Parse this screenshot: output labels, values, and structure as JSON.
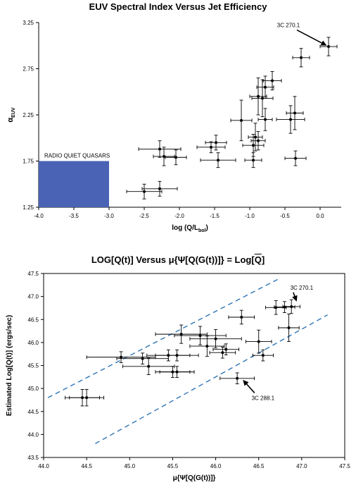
{
  "chart_data": [
    {
      "type": "scatter",
      "title": "EUV Spectral Index Versus Jet Efficiency",
      "xlabel": "log (Q/L",
      "xlabel_sub": "bol",
      "xlabel_end": ")",
      "ylabel": "α",
      "ylabel_sub": "EUV",
      "xlim": [
        -4.0,
        0.3
      ],
      "ylim": [
        1.25,
        3.25
      ],
      "xticks": [
        "-4.0",
        "-3.5",
        "-3.0",
        "-2.5",
        "-2.0",
        "-1.5",
        "-1.0",
        "-0.5",
        "0.0"
      ],
      "xtick_values": [
        -4.0,
        -3.5,
        -3.0,
        -2.5,
        -2.0,
        -1.5,
        -1.0,
        -0.5,
        0.0
      ],
      "yticks": [
        "1.25",
        "1.75",
        "2.25",
        "2.75",
        "3.25"
      ],
      "ytick_values": [
        1.25,
        1.75,
        2.25,
        2.75,
        3.25
      ],
      "region": {
        "label": "RADIO QUIET QUASARS",
        "x": [
          -4.0,
          -3.0
        ],
        "y": [
          1.25,
          1.75
        ],
        "color": "#4a63b5"
      },
      "annotations": [
        {
          "text": "3C 270.1",
          "x": 0.12,
          "y": 2.99,
          "text_x": -0.45,
          "text_y": 3.2
        }
      ],
      "points": [
        {
          "x": 0.12,
          "y": 2.99,
          "xerr": 0.12,
          "yerr": 0.1
        },
        {
          "x": -0.27,
          "y": 2.87,
          "xerr": 0.12,
          "yerr": 0.1
        },
        {
          "x": -0.68,
          "y": 2.62,
          "xerr": 0.13,
          "yerr": 0.1
        },
        {
          "x": -0.78,
          "y": 2.55,
          "xerr": 0.12,
          "yerr": 0.12
        },
        {
          "x": -0.82,
          "y": 2.43,
          "xerr": 0.15,
          "yerr": 0.2
        },
        {
          "x": -0.88,
          "y": 2.45,
          "xerr": 0.12,
          "yerr": 0.2
        },
        {
          "x": -0.78,
          "y": 2.2,
          "xerr": 0.1,
          "yerr": 0.12
        },
        {
          "x": -0.36,
          "y": 2.27,
          "xerr": 0.12,
          "yerr": 0.18
        },
        {
          "x": -0.42,
          "y": 2.2,
          "xerr": 0.2,
          "yerr": 0.15
        },
        {
          "x": -1.12,
          "y": 2.19,
          "xerr": 0.15,
          "yerr": 0.22
        },
        {
          "x": -0.92,
          "y": 2.01,
          "xerr": 0.1,
          "yerr": 0.15
        },
        {
          "x": -0.88,
          "y": 1.97,
          "xerr": 0.1,
          "yerr": 0.1
        },
        {
          "x": -0.95,
          "y": 1.92,
          "xerr": 0.15,
          "yerr": 0.12
        },
        {
          "x": -1.48,
          "y": 1.95,
          "xerr": 0.15,
          "yerr": 0.08
        },
        {
          "x": -1.55,
          "y": 1.9,
          "xerr": 0.2,
          "yerr": 0.06
        },
        {
          "x": -2.28,
          "y": 1.88,
          "xerr": 0.3,
          "yerr": 0.09
        },
        {
          "x": -2.22,
          "y": 1.8,
          "xerr": 0.15,
          "yerr": 0.1
        },
        {
          "x": -2.05,
          "y": 1.79,
          "xerr": 0.15,
          "yerr": 0.08
        },
        {
          "x": -1.45,
          "y": 1.76,
          "xerr": 0.25,
          "yerr": 0.08
        },
        {
          "x": -0.95,
          "y": 1.76,
          "xerr": 0.12,
          "yerr": 0.08
        },
        {
          "x": -0.35,
          "y": 1.78,
          "xerr": 0.15,
          "yerr": 0.08
        },
        {
          "x": -2.28,
          "y": 1.45,
          "xerr": 0.25,
          "yerr": 0.08
        },
        {
          "x": -2.5,
          "y": 1.42,
          "xerr": 0.25,
          "yerr": 0.08
        }
      ]
    },
    {
      "type": "scatter",
      "title": "LOG[Q(t)] Versus μ{Ψ[Q(G(t))]} = Log[",
      "title_overline": "Q",
      "title_end": "]",
      "xlabel": "μ{Ψ[Q(G(t))]}",
      "ylabel": "Estimated Log[Q(t)] (ergs/sec)",
      "xlim": [
        44.0,
        47.5
      ],
      "ylim": [
        43.5,
        47.5
      ],
      "xticks": [
        "44.0",
        "44.5",
        "45.0",
        "45.5",
        "46.0",
        "46.5",
        "47.0",
        "47.5"
      ],
      "xtick_values": [
        44.0,
        44.5,
        45.0,
        45.5,
        46.0,
        46.5,
        47.0,
        47.5
      ],
      "yticks": [
        "43.5",
        "44.0",
        "44.5",
        "45.0",
        "45.5",
        "46.0",
        "46.5",
        "47.0",
        "47.5"
      ],
      "ytick_values": [
        43.5,
        44.0,
        44.5,
        45.0,
        45.5,
        46.0,
        46.5,
        47.0,
        47.5
      ],
      "lines": [
        {
          "x": [
            44.05,
            46.75
          ],
          "y": [
            44.8,
            47.4
          ],
          "style": "dashed",
          "color": "#2e75b6"
        },
        {
          "x": [
            44.6,
            47.3
          ],
          "y": [
            43.8,
            46.6
          ],
          "style": "dashed",
          "color": "#2e75b6"
        }
      ],
      "annotations": [
        {
          "text": "3C 270.1",
          "x": 46.95,
          "y": 46.85,
          "text_x": 47.0,
          "text_y": 47.15
        },
        {
          "text": "3C 288.1",
          "x": 46.3,
          "y": 45.22,
          "text_x": 46.55,
          "text_y": 44.75
        }
      ],
      "points": [
        {
          "x": 44.45,
          "y": 44.8,
          "xerr": 0.2,
          "yerr": 0.18
        },
        {
          "x": 44.5,
          "y": 44.8,
          "xerr": 0.2,
          "yerr": 0.18
        },
        {
          "x": 44.9,
          "y": 45.68,
          "xerr": 0.4,
          "yerr": 0.12
        },
        {
          "x": 45.15,
          "y": 45.65,
          "xerr": 0.3,
          "yerr": 0.12
        },
        {
          "x": 45.22,
          "y": 45.48,
          "xerr": 0.3,
          "yerr": 0.18
        },
        {
          "x": 45.45,
          "y": 45.72,
          "xerr": 0.25,
          "yerr": 0.12
        },
        {
          "x": 45.55,
          "y": 45.72,
          "xerr": 0.25,
          "yerr": 0.12
        },
        {
          "x": 45.5,
          "y": 45.36,
          "xerr": 0.2,
          "yerr": 0.12
        },
        {
          "x": 45.55,
          "y": 45.36,
          "xerr": 0.2,
          "yerr": 0.12
        },
        {
          "x": 45.6,
          "y": 46.18,
          "xerr": 0.3,
          "yerr": 0.2
        },
        {
          "x": 45.82,
          "y": 46.15,
          "xerr": 0.3,
          "yerr": 0.2
        },
        {
          "x": 45.9,
          "y": 45.92,
          "xerr": 0.2,
          "yerr": 0.22
        },
        {
          "x": 46.0,
          "y": 46.08,
          "xerr": 0.3,
          "yerr": 0.2
        },
        {
          "x": 46.08,
          "y": 45.78,
          "xerr": 0.15,
          "yerr": 0.12
        },
        {
          "x": 46.12,
          "y": 45.85,
          "xerr": 0.15,
          "yerr": 0.12
        },
        {
          "x": 46.3,
          "y": 46.55,
          "xerr": 0.15,
          "yerr": 0.15
        },
        {
          "x": 46.25,
          "y": 45.22,
          "xerr": 0.2,
          "yerr": 0.12
        },
        {
          "x": 46.5,
          "y": 46.02,
          "xerr": 0.15,
          "yerr": 0.25
        },
        {
          "x": 46.55,
          "y": 45.72,
          "xerr": 0.12,
          "yerr": 0.12
        },
        {
          "x": 46.7,
          "y": 46.76,
          "xerr": 0.12,
          "yerr": 0.15
        },
        {
          "x": 46.8,
          "y": 46.77,
          "xerr": 0.12,
          "yerr": 0.12
        },
        {
          "x": 46.88,
          "y": 46.78,
          "xerr": 0.1,
          "yerr": 0.15
        },
        {
          "x": 46.85,
          "y": 46.32,
          "xerr": 0.12,
          "yerr": 0.3
        }
      ]
    }
  ]
}
